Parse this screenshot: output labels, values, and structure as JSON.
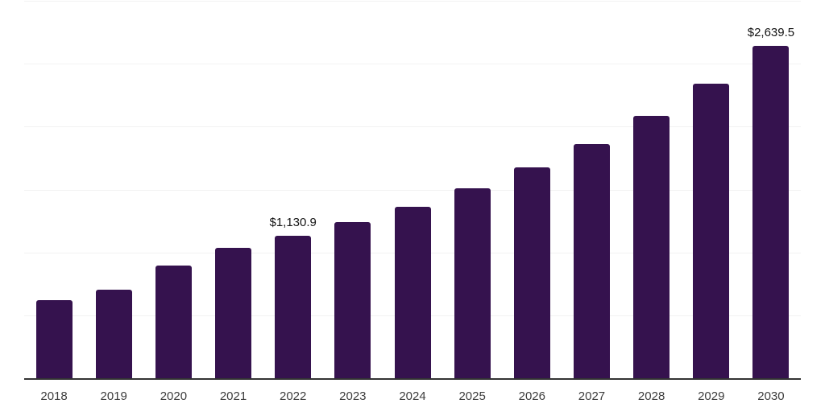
{
  "chart_data": {
    "type": "bar",
    "title": "",
    "xlabel": "",
    "ylabel": "",
    "categories": [
      "2018",
      "2019",
      "2020",
      "2021",
      "2022",
      "2023",
      "2024",
      "2025",
      "2026",
      "2027",
      "2028",
      "2029",
      "2030"
    ],
    "values": [
      621,
      703,
      893,
      1038,
      1130.9,
      1240,
      1362,
      1507,
      1674,
      1864,
      2088,
      2341,
      2639.5
    ],
    "bar_labels": [
      "",
      "",
      "",
      "",
      "$1,130.9",
      "",
      "",
      "",
      "",
      "",
      "",
      "",
      "$2,639.5"
    ],
    "ylim": [
      0,
      3000
    ],
    "gridline_interval": 500,
    "gridline_count": 6,
    "grid": "horizontal-only",
    "legend_position": "none",
    "colors": {
      "bar": "#35124e",
      "axis_line": "#333333",
      "gridline": "#f2f2f2",
      "tick_label": "#3d3d3d",
      "data_label": "#141414",
      "background": "#ffffff"
    }
  }
}
